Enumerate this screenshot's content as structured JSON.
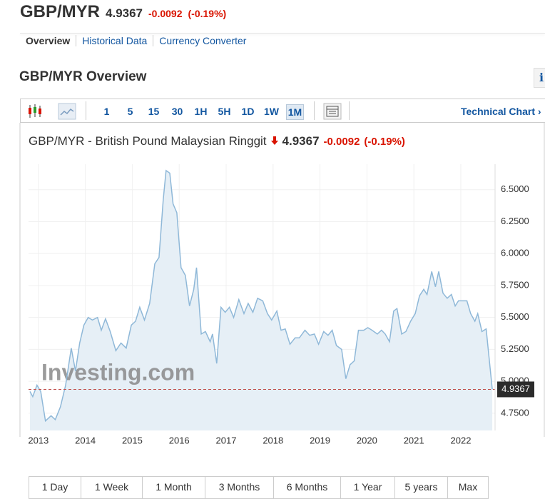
{
  "header": {
    "symbol": "GBP/MYR",
    "price": "4.9367",
    "change": "-0.0092",
    "change_pct": "(-0.19%)"
  },
  "tabs": [
    "Overview",
    "Historical Data",
    "Currency Converter"
  ],
  "section_title": "GBP/MYR Overview",
  "info_icon": "i",
  "toolbar": {
    "intervals": [
      "1",
      "5",
      "15",
      "30",
      "1H",
      "5H",
      "1D",
      "1W",
      "1M"
    ],
    "technical_chart": "Technical Chart ›"
  },
  "chart_data": {
    "type": "line",
    "title": "GBP/MYR - British Pound Malaysian Ringgit",
    "price": "4.9367",
    "change": "-0.0092",
    "change_pct": "(-0.19%)",
    "watermark": "Investing.com",
    "color": "#8fb8d8",
    "fill": "#e6eff6",
    "grid": true,
    "last_value": 4.9367,
    "x": [
      2012.82,
      2012.88,
      2012.97,
      2013.05,
      2013.15,
      2013.27,
      2013.36,
      2013.47,
      2013.58,
      2013.7,
      2013.79,
      2013.88,
      2013.97,
      2014.06,
      2014.15,
      2014.26,
      2014.34,
      2014.43,
      2014.53,
      2014.65,
      2014.76,
      2014.87,
      2014.98,
      2015.07,
      2015.16,
      2015.26,
      2015.37,
      2015.48,
      2015.57,
      2015.66,
      2015.72,
      2015.8,
      2015.87,
      2015.95,
      2016.04,
      2016.13,
      2016.22,
      2016.31,
      2016.37,
      2016.47,
      2016.56,
      2016.66,
      2016.71,
      2016.8,
      2016.89,
      2016.98,
      2017.07,
      2017.16,
      2017.27,
      2017.38,
      2017.47,
      2017.57,
      2017.67,
      2017.78,
      2017.88,
      2017.97,
      2018.08,
      2018.17,
      2018.26,
      2018.36,
      2018.47,
      2018.56,
      2018.68,
      2018.78,
      2018.88,
      2018.97,
      2019.08,
      2019.17,
      2019.26,
      2019.35,
      2019.46,
      2019.55,
      2019.64,
      2019.73,
      2019.82,
      2019.93,
      2020.02,
      2020.11,
      2020.22,
      2020.31,
      2020.39,
      2020.48,
      2020.57,
      2020.64,
      2020.74,
      2020.83,
      2020.93,
      2021.03,
      2021.12,
      2021.21,
      2021.28,
      2021.38,
      2021.46,
      2021.53,
      2021.62,
      2021.71,
      2021.8,
      2021.88,
      2021.95,
      2022.04,
      2022.13,
      2022.21,
      2022.3,
      2022.36,
      2022.45,
      2022.54,
      2022.67
    ],
    "values": [
      4.92,
      4.88,
      4.97,
      4.92,
      4.69,
      4.73,
      4.7,
      4.8,
      4.97,
      5.26,
      5.08,
      5.3,
      5.44,
      5.5,
      5.48,
      5.5,
      5.4,
      5.49,
      5.39,
      5.24,
      5.3,
      5.26,
      5.44,
      5.47,
      5.58,
      5.48,
      5.61,
      5.92,
      5.97,
      6.42,
      6.65,
      6.63,
      6.39,
      6.32,
      5.89,
      5.83,
      5.59,
      5.72,
      5.89,
      5.37,
      5.39,
      5.31,
      5.37,
      5.14,
      5.58,
      5.54,
      5.58,
      5.5,
      5.64,
      5.53,
      5.61,
      5.54,
      5.65,
      5.63,
      5.53,
      5.48,
      5.55,
      5.4,
      5.41,
      5.29,
      5.34,
      5.34,
      5.4,
      5.36,
      5.37,
      5.29,
      5.39,
      5.36,
      5.4,
      5.28,
      5.25,
      5.02,
      5.13,
      5.16,
      5.4,
      5.4,
      5.42,
      5.4,
      5.37,
      5.4,
      5.37,
      5.31,
      5.55,
      5.57,
      5.37,
      5.39,
      5.47,
      5.53,
      5.67,
      5.72,
      5.68,
      5.86,
      5.74,
      5.86,
      5.69,
      5.65,
      5.68,
      5.59,
      5.63,
      5.63,
      5.63,
      5.53,
      5.47,
      5.53,
      5.39,
      5.41,
      4.9367
    ],
    "xlim": [
      2012.79,
      2022.73
    ],
    "ylim": [
      4.615,
      6.7
    ],
    "xticks": [
      2013,
      2014,
      2015,
      2016,
      2017,
      2018,
      2019,
      2020,
      2021,
      2022
    ],
    "yticks": [
      {
        "value": 4.75,
        "label": "4.7500"
      },
      {
        "value": 5,
        "label": "5.0000"
      },
      {
        "value": 5.25,
        "label": "5.2500"
      },
      {
        "value": 5.5,
        "label": "5.5000"
      },
      {
        "value": 5.75,
        "label": "5.7500"
      },
      {
        "value": 6,
        "label": "6.0000"
      },
      {
        "value": 6.25,
        "label": "6.2500"
      },
      {
        "value": 6.5,
        "label": "6.5000"
      }
    ]
  },
  "ranges": [
    "1 Day",
    "1 Week",
    "1 Month",
    "3 Months",
    "6 Months",
    "1 Year",
    "5 years",
    "Max"
  ]
}
